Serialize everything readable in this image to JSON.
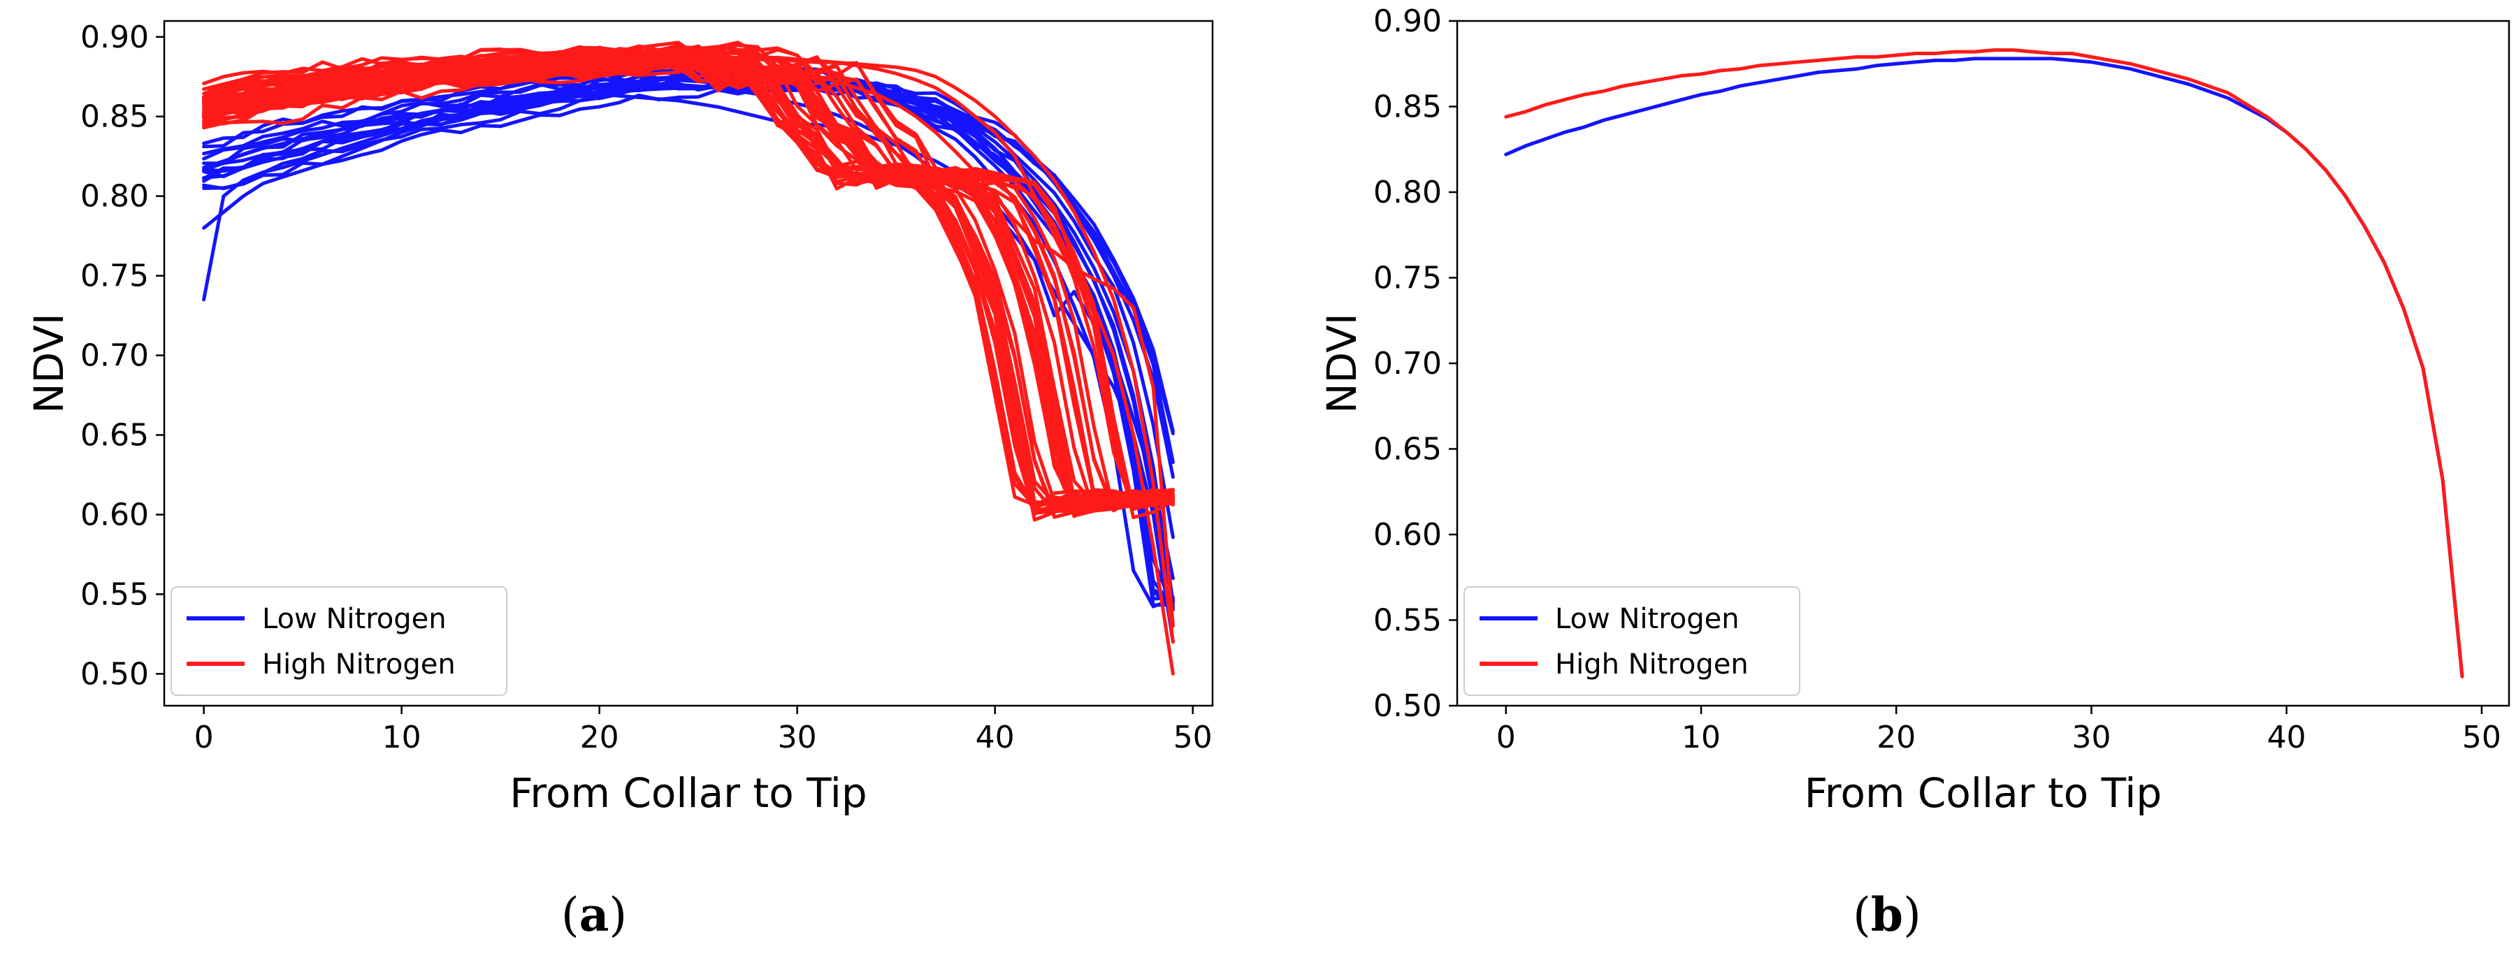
{
  "colors": {
    "low": "#1414ff",
    "high": "#ff1a1a",
    "axis": "#000000",
    "background": "#ffffff"
  },
  "chart_data": [
    {
      "type": "line",
      "panel_label": "a",
      "xlabel": "From Collar to Tip",
      "ylabel": "NDVI",
      "xlim": [
        -2,
        51
      ],
      "ylim": [
        0.48,
        0.91
      ],
      "xticks": [
        0,
        10,
        20,
        30,
        40,
        50
      ],
      "yticks": [
        0.5,
        0.55,
        0.6,
        0.65,
        0.7,
        0.75,
        0.8,
        0.85,
        0.9
      ],
      "ytick_labels": [
        "0.50",
        "0.55",
        "0.60",
        "0.65",
        "0.70",
        "0.75",
        "0.80",
        "0.85",
        "0.90"
      ],
      "legend": {
        "position": "lower-left",
        "entries": [
          "Low Nitrogen",
          "High Nitrogen"
        ]
      },
      "low_curves": 14,
      "high_curves": 40,
      "series": [
        {
          "name": "Low Nitrogen",
          "color": "#1414ff",
          "y": [
            0.818,
            0.822,
            0.826,
            0.83,
            0.833,
            0.836,
            0.839,
            0.842,
            0.845,
            0.847,
            0.849,
            0.852,
            0.854,
            0.856,
            0.858,
            0.86,
            0.862,
            0.864,
            0.866,
            0.868,
            0.87,
            0.871,
            0.872,
            0.873,
            0.874,
            0.874,
            0.875,
            0.875,
            0.875,
            0.875,
            0.874,
            0.873,
            0.872,
            0.87,
            0.868,
            0.865,
            0.861,
            0.856,
            0.85,
            0.843,
            0.834,
            0.823,
            0.81,
            0.795,
            0.777,
            0.755,
            0.727,
            0.69,
            0.63,
            0.545
          ]
        },
        {
          "name": "Low Nitrogen",
          "color": "#1414ff",
          "y": [
            0.735,
            0.8,
            0.81,
            0.815,
            0.818,
            0.822,
            0.826,
            0.83,
            0.834,
            0.838,
            0.842,
            0.845,
            0.848,
            0.851,
            0.854,
            0.856,
            0.858,
            0.86,
            0.862,
            0.863,
            0.864,
            0.863,
            0.862,
            0.861,
            0.86,
            0.858,
            0.856,
            0.853,
            0.85,
            0.847,
            0.845,
            0.845,
            0.843,
            0.84,
            0.836,
            0.832,
            0.827,
            0.822,
            0.815,
            0.805,
            0.79,
            0.775,
            0.76,
            0.725,
            0.74,
            0.72,
            0.7,
            0.66,
            0.62,
            0.56
          ]
        },
        {
          "name": "Low Nitrogen",
          "color": "#1414ff",
          "y": [
            0.78,
            0.79,
            0.8,
            0.808,
            0.812,
            0.816,
            0.82,
            0.825,
            0.83,
            0.835,
            0.84,
            0.844,
            0.848,
            0.851,
            0.854,
            0.857,
            0.86,
            0.862,
            0.864,
            0.866,
            0.868,
            0.869,
            0.87,
            0.87,
            0.87,
            0.869,
            0.868,
            0.866,
            0.864,
            0.861,
            0.858,
            0.855,
            0.851,
            0.846,
            0.84,
            0.833,
            0.825,
            0.815,
            0.805,
            0.805,
            0.795,
            0.78,
            0.76,
            0.74,
            0.72,
            0.7,
            0.68,
            0.65,
            0.6,
            0.52
          ]
        },
        {
          "name": "High Nitrogen",
          "color": "#ff1a1a",
          "y": [
            0.845,
            0.848,
            0.851,
            0.854,
            0.857,
            0.859,
            0.861,
            0.863,
            0.865,
            0.867,
            0.868,
            0.87,
            0.871,
            0.872,
            0.874,
            0.875,
            0.876,
            0.877,
            0.878,
            0.879,
            0.88,
            0.881,
            0.881,
            0.882,
            0.882,
            0.882,
            0.882,
            0.881,
            0.88,
            0.879,
            0.877,
            0.875,
            0.872,
            0.868,
            0.864,
            0.858,
            0.85,
            0.84,
            0.828,
            0.815,
            0.8,
            0.785,
            0.772,
            0.765,
            0.755,
            0.748,
            0.742,
            0.73,
            0.68,
            0.53
          ]
        },
        {
          "name": "High Nitrogen",
          "color": "#ff1a1a",
          "y": [
            0.86,
            0.862,
            0.864,
            0.866,
            0.868,
            0.87,
            0.871,
            0.872,
            0.873,
            0.875,
            0.876,
            0.877,
            0.878,
            0.879,
            0.88,
            0.881,
            0.882,
            0.883,
            0.884,
            0.884,
            0.885,
            0.886,
            0.886,
            0.887,
            0.887,
            0.887,
            0.887,
            0.886,
            0.886,
            0.885,
            0.885,
            0.884,
            0.884,
            0.883,
            0.882,
            0.881,
            0.879,
            0.875,
            0.868,
            0.86,
            0.85,
            0.838,
            0.825,
            0.81,
            0.79,
            0.765,
            0.735,
            0.69,
            0.62,
            0.52
          ]
        },
        {
          "name": "High Nitrogen",
          "color": "#ff1a1a",
          "y": [
            0.85,
            0.853,
            0.856,
            0.859,
            0.861,
            0.864,
            0.866,
            0.868,
            0.869,
            0.871,
            0.872,
            0.874,
            0.875,
            0.876,
            0.877,
            0.878,
            0.879,
            0.88,
            0.881,
            0.881,
            0.882,
            0.883,
            0.883,
            0.884,
            0.885,
            0.885,
            0.886,
            0.883,
            0.87,
            0.875,
            0.88,
            0.86,
            0.84,
            0.835,
            0.81,
            0.812,
            0.812,
            0.812,
            0.81,
            0.805,
            0.79,
            0.76,
            0.73,
            0.66,
            0.6,
            0.605,
            0.607,
            0.609,
            0.61,
            0.61
          ]
        },
        {
          "name": "High Nitrogen",
          "color": "#ff1a1a",
          "y": [
            0.855,
            0.857,
            0.86,
            0.862,
            0.865,
            0.867,
            0.869,
            0.87,
            0.872,
            0.873,
            0.875,
            0.876,
            0.877,
            0.878,
            0.879,
            0.88,
            0.881,
            0.882,
            0.883,
            0.883,
            0.884,
            0.885,
            0.885,
            0.886,
            0.886,
            0.887,
            0.887,
            0.887,
            0.887,
            0.887,
            0.886,
            0.885,
            0.884,
            0.882,
            0.88,
            0.877,
            0.873,
            0.868,
            0.86,
            0.85,
            0.84,
            0.825,
            0.8,
            0.775,
            0.75,
            0.73,
            0.7,
            0.65,
            0.58,
            0.5
          ]
        }
      ]
    },
    {
      "type": "line",
      "panel_label": "b",
      "xlabel": "From Collar to Tip",
      "ylabel": "NDVI",
      "xlim": [
        -2.5,
        51.4
      ],
      "ylim": [
        0.5,
        0.9
      ],
      "xticks": [
        0,
        10,
        20,
        30,
        40,
        50
      ],
      "yticks": [
        0.5,
        0.55,
        0.6,
        0.65,
        0.7,
        0.75,
        0.8,
        0.85,
        0.9
      ],
      "ytick_labels": [
        "0.50",
        "0.55",
        "0.60",
        "0.65",
        "0.70",
        "0.75",
        "0.80",
        "0.85",
        "0.90"
      ],
      "legend": {
        "position": "lower-left",
        "entries": [
          "Low Nitrogen",
          "High Nitrogen"
        ]
      },
      "series": [
        {
          "name": "Low Nitrogen",
          "color": "#1414ff",
          "y": [
            0.822,
            0.827,
            0.831,
            0.835,
            0.838,
            0.842,
            0.845,
            0.848,
            0.851,
            0.854,
            0.857,
            0.859,
            0.862,
            0.864,
            0.866,
            0.868,
            0.87,
            0.871,
            0.872,
            0.874,
            0.875,
            0.876,
            0.877,
            0.877,
            0.878,
            0.878,
            0.878,
            0.878,
            0.878,
            0.877,
            0.876,
            0.874,
            0.872,
            0.869,
            0.866,
            0.863,
            0.859,
            0.855,
            0.849,
            0.843,
            0.835,
            0.825,
            0.813,
            0.798,
            0.78,
            0.759,
            0.732,
            0.697,
            0.632,
            0.517
          ]
        },
        {
          "name": "High Nitrogen",
          "color": "#ff1a1a",
          "y": [
            0.844,
            0.847,
            0.851,
            0.854,
            0.857,
            0.859,
            0.862,
            0.864,
            0.866,
            0.868,
            0.869,
            0.871,
            0.872,
            0.874,
            0.875,
            0.876,
            0.877,
            0.878,
            0.879,
            0.879,
            0.88,
            0.881,
            0.881,
            0.882,
            0.882,
            0.883,
            0.883,
            0.882,
            0.881,
            0.881,
            0.879,
            0.877,
            0.875,
            0.872,
            0.869,
            0.866,
            0.862,
            0.858,
            0.851,
            0.844,
            0.835,
            0.825,
            0.813,
            0.798,
            0.78,
            0.759,
            0.732,
            0.697,
            0.632,
            0.517
          ]
        }
      ]
    }
  ]
}
